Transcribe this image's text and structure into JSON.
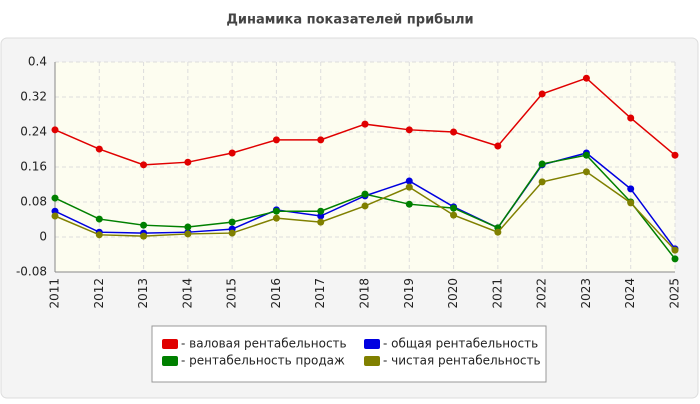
{
  "chart_data": {
    "type": "line",
    "title": "Динамика показателей прибыли",
    "categories": [
      "2011",
      "2012",
      "2013",
      "2014",
      "2015",
      "2016",
      "2017",
      "2018",
      "2019",
      "2020",
      "2021",
      "2022",
      "2023",
      "2024",
      "2025"
    ],
    "series": [
      {
        "name": "- валовая рентабельность",
        "color": "#e00000",
        "values": [
          0.245,
          0.201,
          0.165,
          0.171,
          0.192,
          0.222,
          0.222,
          0.258,
          0.245,
          0.24,
          0.208,
          0.327,
          0.363,
          0.272,
          0.187
        ]
      },
      {
        "name": "- общая рентабельность",
        "color": "#0000e0",
        "values": [
          0.059,
          0.011,
          0.009,
          0.011,
          0.018,
          0.062,
          0.048,
          0.094,
          0.128,
          0.069,
          0.021,
          0.165,
          0.192,
          0.11,
          -0.027
        ]
      },
      {
        "name": "- рентабельность продаж",
        "color": "#008000",
        "values": [
          0.089,
          0.041,
          0.027,
          0.023,
          0.034,
          0.059,
          0.059,
          0.098,
          0.075,
          0.066,
          0.021,
          0.167,
          0.187,
          0.08,
          -0.05
        ]
      },
      {
        "name": "- чистая рентабельность",
        "color": "#808000",
        "values": [
          0.048,
          0.005,
          0.002,
          0.007,
          0.009,
          0.043,
          0.034,
          0.071,
          0.114,
          0.05,
          0.011,
          0.126,
          0.149,
          0.078,
          -0.03
        ]
      }
    ],
    "ylim": [
      -0.08,
      0.4
    ],
    "yticks": [
      0.4,
      0.32,
      0.24,
      0.16,
      0.08,
      0,
      -0.08
    ],
    "grid": true,
    "legend": "bottom"
  }
}
